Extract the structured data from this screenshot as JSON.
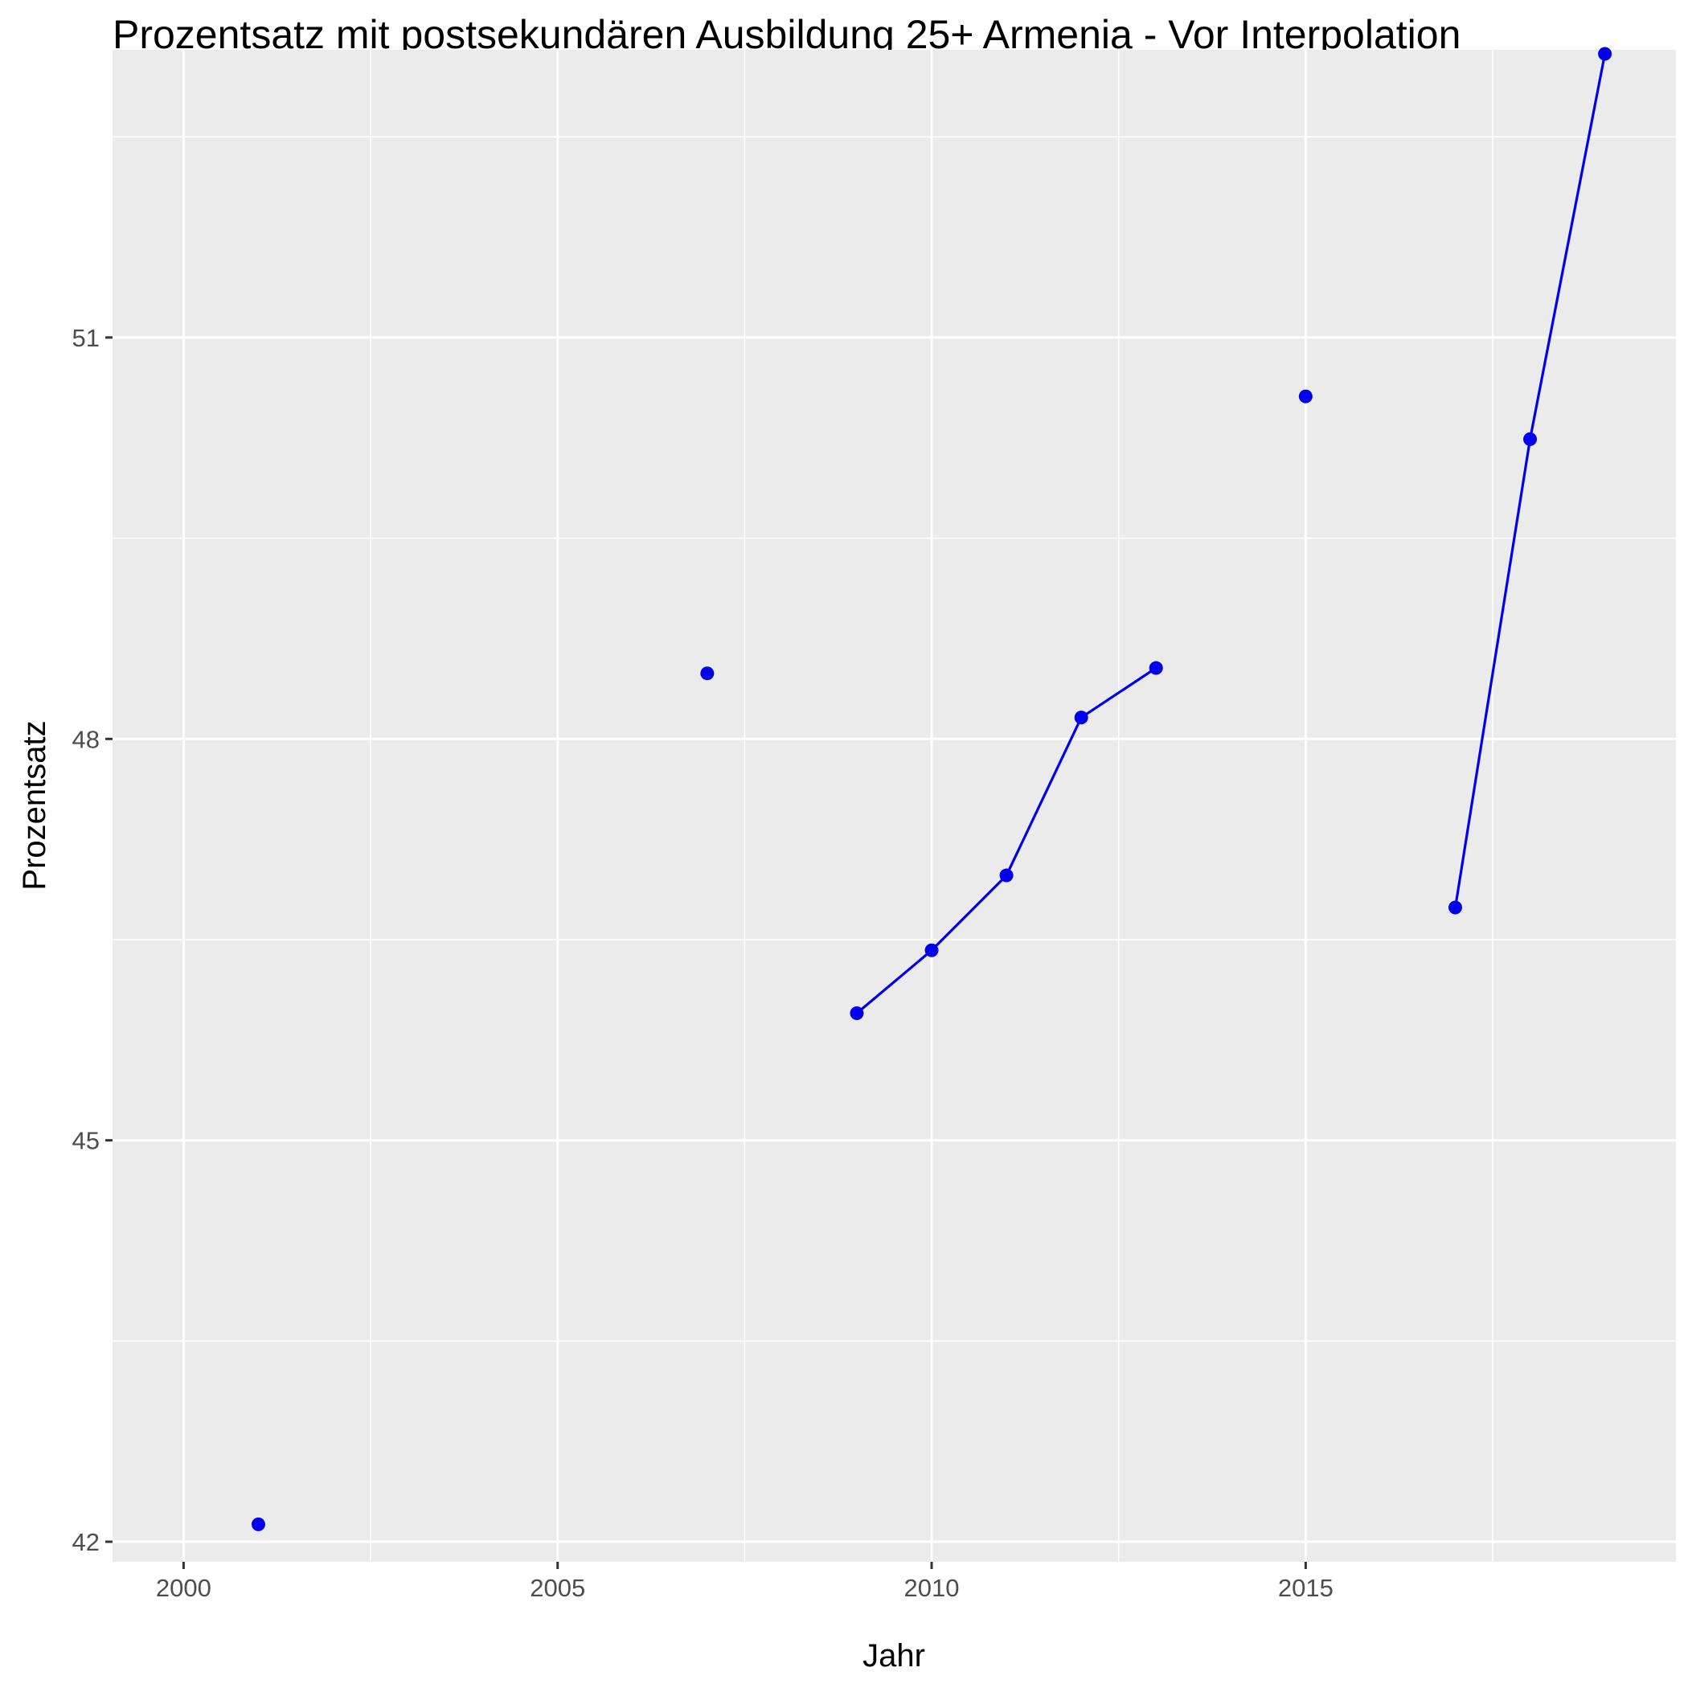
{
  "chart_data": {
    "type": "line",
    "title": "Prozentsatz mit postsekundären Ausbildung 25+ Armenia - Vor Interpolation",
    "xlabel": "Jahr",
    "ylabel": "Prozentsatz",
    "xlim": [
      1999.05,
      2019.95
    ],
    "ylim": [
      41.85,
      53.15
    ],
    "x_ticks": [
      2000,
      2005,
      2010,
      2015
    ],
    "x_tick_labels": [
      "2000",
      "2005",
      "2010",
      "2015"
    ],
    "y_ticks": [
      42,
      45,
      48,
      51
    ],
    "y_tick_labels": [
      "42",
      "45",
      "48",
      "51"
    ],
    "grid": true,
    "series": [
      {
        "color": "#0000ee",
        "points": [
          {
            "x": 2001,
            "y": 42.13
          },
          {
            "x": 2007,
            "y": 48.49
          },
          {
            "x": 2009,
            "y": 45.95
          },
          {
            "x": 2010,
            "y": 46.42
          },
          {
            "x": 2011,
            "y": 46.98
          },
          {
            "x": 2012,
            "y": 48.16
          },
          {
            "x": 2013,
            "y": 48.53
          },
          {
            "x": 2015,
            "y": 50.56
          },
          {
            "x": 2017,
            "y": 46.74
          },
          {
            "x": 2018,
            "y": 50.24
          },
          {
            "x": 2019,
            "y": 53.12
          }
        ],
        "connected_segments": [
          [
            2009,
            2013
          ],
          [
            2017,
            2019
          ]
        ]
      }
    ]
  }
}
